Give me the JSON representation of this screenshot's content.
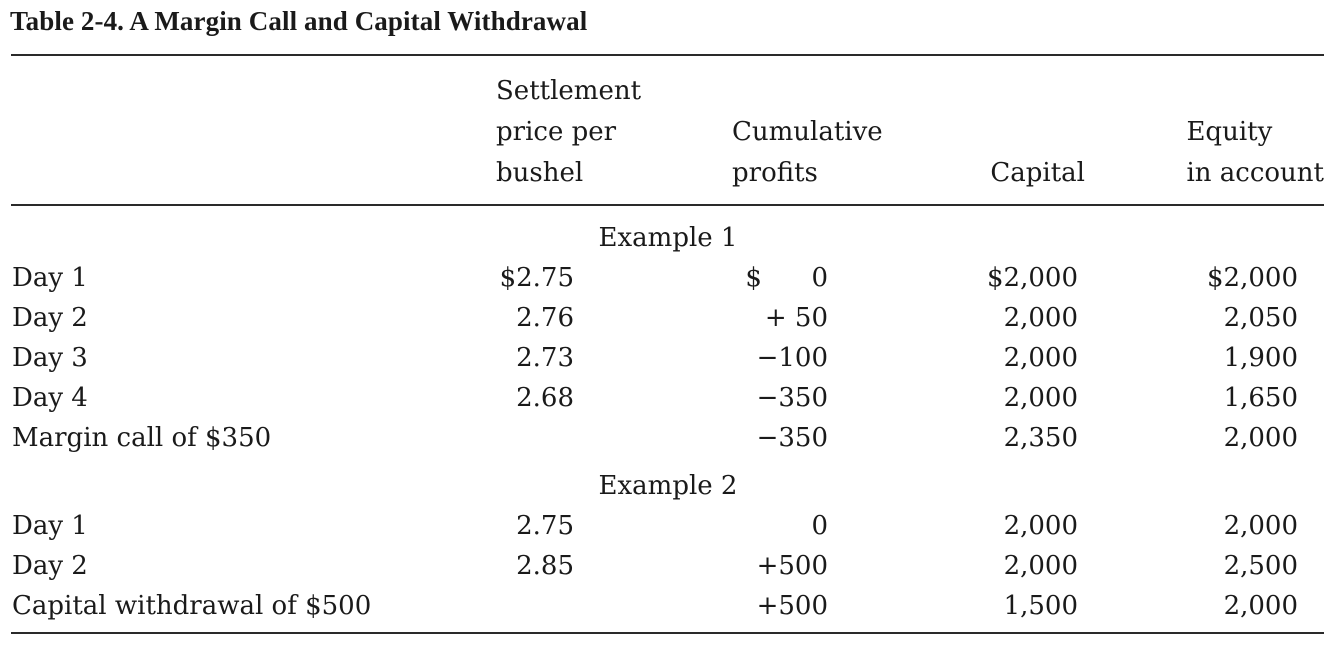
{
  "title": "Table 2-4. A Margin Call and Capital Withdrawal",
  "headers": {
    "price": [
      "Settlement",
      "price per",
      "bushel"
    ],
    "profits": [
      "Cumulative",
      "profits"
    ],
    "capital": [
      "Capital"
    ],
    "equity": [
      "Equity",
      "in account"
    ]
  },
  "example1": {
    "label": "Example 1",
    "rows": [
      {
        "label": "Day 1",
        "price": "$2.75",
        "profit": "$      0",
        "capital": "$2,000",
        "equity": "$2,000"
      },
      {
        "label": "Day 2",
        "price": "2.76",
        "profit": "+ 50",
        "capital": "2,000",
        "equity": "2,050"
      },
      {
        "label": "Day 3",
        "price": "2.73",
        "profit": "−100",
        "capital": "2,000",
        "equity": "1,900"
      },
      {
        "label": "Day 4",
        "price": "2.68",
        "profit": "−350",
        "capital": "2,000",
        "equity": "1,650"
      },
      {
        "label": "Margin call of $350",
        "price": "",
        "profit": "−350",
        "capital": "2,350",
        "equity": "2,000"
      }
    ]
  },
  "example2": {
    "label": "Example 2",
    "rows": [
      {
        "label": "Day 1",
        "price": "2.75",
        "profit": "0",
        "capital": "2,000",
        "equity": "2,000"
      },
      {
        "label": "Day 2",
        "price": "2.85",
        "profit": "+500",
        "capital": "2,000",
        "equity": "2,500"
      },
      {
        "label": "Capital withdrawal of $500",
        "price": "",
        "profit": "+500",
        "capital": "1,500",
        "equity": "2,000"
      }
    ]
  }
}
